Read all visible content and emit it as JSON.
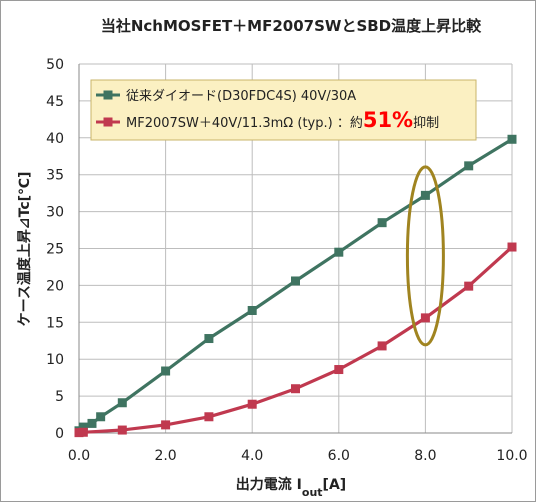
{
  "chart_data": {
    "type": "line",
    "title": "当社NchMOSFET＋MF2007SWとSBD温度上昇比較",
    "xlabel": "出力電流 I",
    "xlabel_sub": "out",
    "xlabel_unit": "[A]",
    "ylabel": "ケース温度上昇⊿Tc[℃]",
    "xlim": [
      0,
      10
    ],
    "ylim": [
      0,
      50
    ],
    "x_ticks": [
      "0.0",
      "2.0",
      "4.0",
      "6.0",
      "8.0",
      "10.0"
    ],
    "x_tick_values": [
      0,
      2,
      4,
      6,
      8,
      10
    ],
    "y_ticks": [
      "0",
      "5",
      "10",
      "15",
      "20",
      "25",
      "30",
      "35",
      "40",
      "45",
      "50"
    ],
    "y_tick_values": [
      0,
      5,
      10,
      15,
      20,
      25,
      30,
      35,
      40,
      45,
      50
    ],
    "grid": true,
    "legend_position": "top-left",
    "series": [
      {
        "name": "従来ダイオード(D30FDC4S) 40V/30A",
        "color": "#3f7461",
        "marker": "square",
        "x": [
          0,
          0.1,
          0.3,
          0.5,
          1,
          2,
          3,
          4,
          5,
          6,
          7,
          8,
          9,
          10
        ],
        "y": [
          0.3,
          0.8,
          1.3,
          2.2,
          4.1,
          8.4,
          12.8,
          16.6,
          20.6,
          24.5,
          28.5,
          32.2,
          36.2,
          39.8
        ]
      },
      {
        "name": "MF2007SW＋40V/11.3mΩ (typ.) ：約",
        "name_emph": "51%",
        "name_suffix": "抑制",
        "emph_color": "#ff0000",
        "color": "#c0394f",
        "marker": "square",
        "x": [
          0,
          0.1,
          1,
          2,
          3,
          4,
          5,
          6,
          7,
          8,
          9,
          10
        ],
        "y": [
          0.05,
          0.1,
          0.4,
          1.1,
          2.2,
          3.9,
          6.0,
          8.6,
          11.8,
          15.6,
          19.9,
          25.2
        ]
      }
    ],
    "highlight": {
      "shape": "ellipse",
      "x": 8,
      "y": 24,
      "color": "#a08420"
    }
  }
}
